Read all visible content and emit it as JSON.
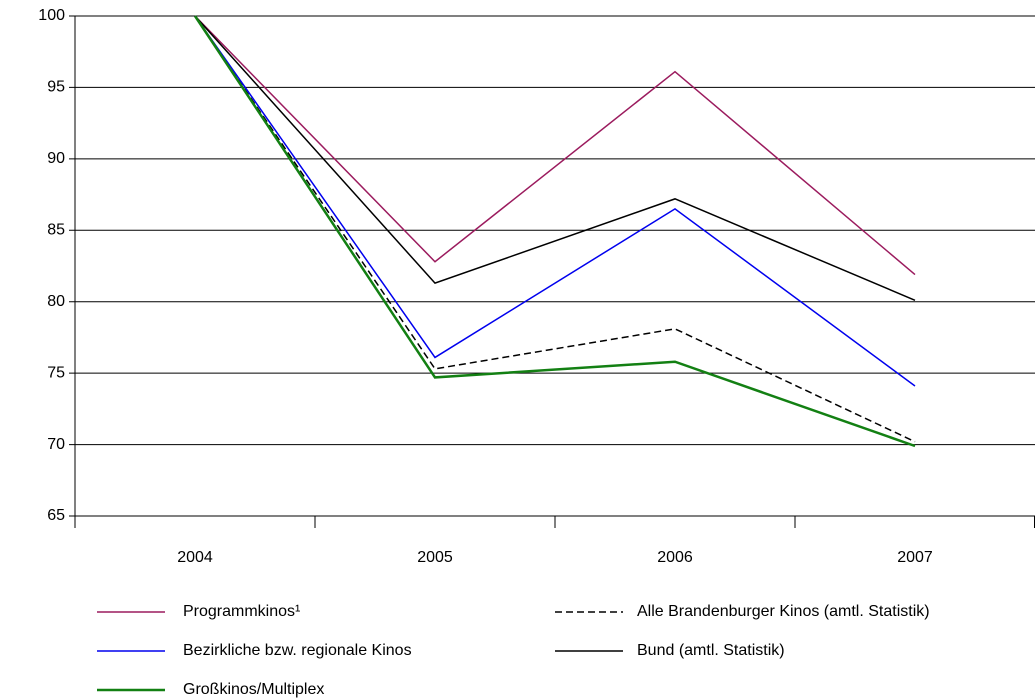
{
  "chart_data": {
    "type": "line",
    "categories": [
      "2004",
      "2005",
      "2006",
      "2007"
    ],
    "series": [
      {
        "name": "Programmkinos¹",
        "color": "#9b1b5e",
        "values": [
          100,
          82.8,
          96.1,
          81.9
        ]
      },
      {
        "name": "Alle Brandenburger Kinos (amtl. Statistik)",
        "color": "#000000",
        "dashed": true,
        "values": [
          100,
          75.3,
          78.1,
          70.2
        ]
      },
      {
        "name": "Bezirkliche bzw. regionale Kinos",
        "color": "#0000ee",
        "values": [
          100,
          76.1,
          86.5,
          74.1
        ]
      },
      {
        "name": "Bund (amtl. Statistik)",
        "color": "#000000",
        "values": [
          100,
          81.3,
          87.2,
          80.1
        ]
      },
      {
        "name": "Großkinos/Multiplex",
        "color": "#138013",
        "linewidth": 2.5,
        "values": [
          100,
          74.7,
          75.8,
          69.9
        ]
      }
    ],
    "ylim": [
      65,
      100
    ],
    "yticks": [
      65,
      70,
      75,
      80,
      85,
      90,
      95,
      100
    ],
    "grid": true
  }
}
